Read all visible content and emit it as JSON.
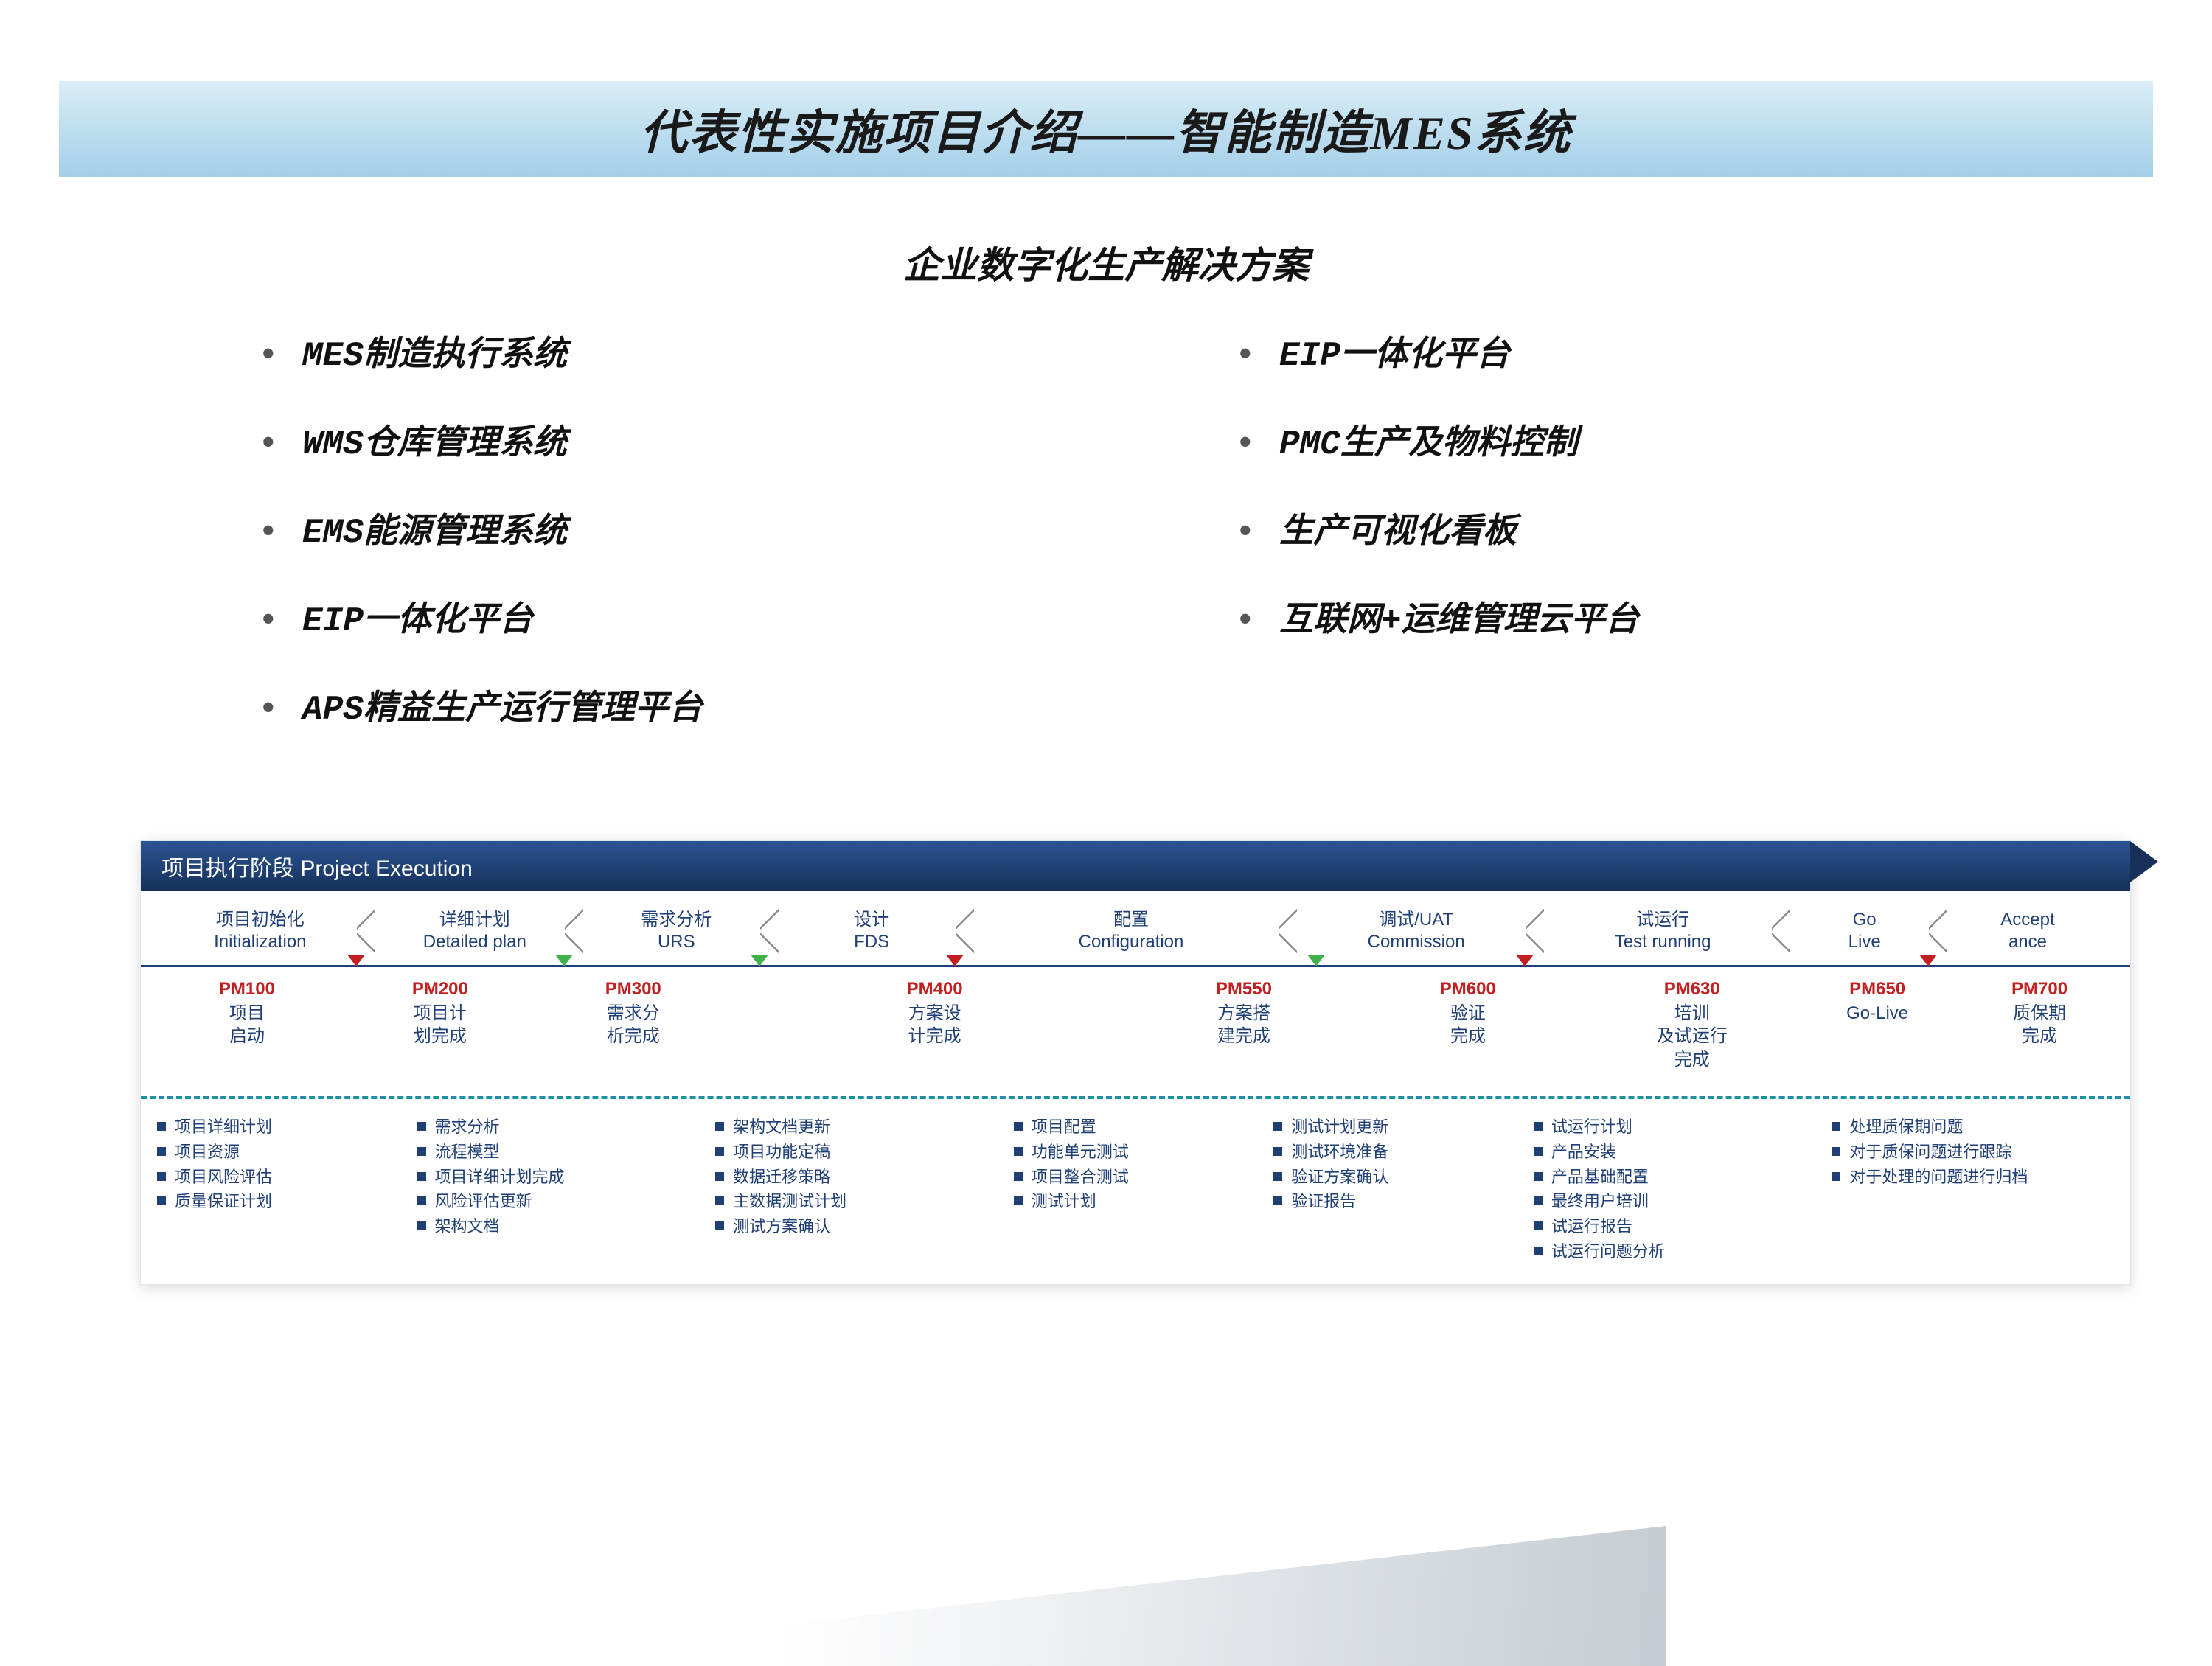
{
  "title": "代表性实施项目介绍——智能制造MES系统",
  "subtitle": "企业数字化生产解决方案",
  "bullets_left": [
    "MES制造执行系统",
    "WMS仓库管理系统",
    "EMS能源管理系统",
    "EIP一体化平台",
    "APS精益生产运行管理平台"
  ],
  "bullets_right": [
    "EIP一体化平台",
    "PMC生产及物料控制",
    "生产可视化看板",
    "互联网+运维管理云平台"
  ],
  "timeline": {
    "header": "项目执行阶段   Project Execution",
    "phases": [
      {
        "label": "项目初始化\nInitialization",
        "flex": 1.4,
        "marker": "red"
      },
      {
        "label": "详细计划\nDetailed plan",
        "flex": 1.3,
        "marker": "green"
      },
      {
        "label": "需求分析\nURS",
        "flex": 1.2,
        "marker": "green"
      },
      {
        "label": "设计\nFDS",
        "flex": 1.2,
        "marker": "red"
      },
      {
        "label": "配置\nConfiguration",
        "flex": 2.2,
        "marker": null
      },
      {
        "label": "调试/UAT\nCommission",
        "flex": 1.6,
        "marker": "green",
        "marker_side": "left",
        "marker2": "red"
      },
      {
        "label": "试运行\nTest running",
        "flex": 1.6,
        "marker": null
      },
      {
        "label": "Go\nLive",
        "flex": 0.9,
        "marker": "red"
      },
      {
        "label": "Accept\nance",
        "flex": 1.0,
        "marker": null
      }
    ],
    "milestones": [
      {
        "pm": "PM100",
        "label": "项目\n启动",
        "flex": 1.2
      },
      {
        "pm": "PM200",
        "label": "项目计\n划完成",
        "flex": 1.2
      },
      {
        "pm": "PM300",
        "label": "需求分\n析完成",
        "flex": 1.2
      },
      {
        "pm": "PM400",
        "label": "方案设\n计完成",
        "flex": 2.6
      },
      {
        "pm": "PM550",
        "label": "方案搭\n建完成",
        "flex": 1.3
      },
      {
        "pm": "PM600",
        "label": "验证\n完成",
        "flex": 1.5
      },
      {
        "pm": "PM630",
        "label": "培训\n及试运行\n完成",
        "flex": 1.3
      },
      {
        "pm": "PM650",
        "label": "Go-Live",
        "flex": 1.0
      },
      {
        "pm": "PM700",
        "label": "质保期\n完成",
        "flex": 1.0
      }
    ],
    "deliverables": [
      {
        "flex": 1.3,
        "items": [
          "项目详细计划",
          "项目资源",
          "项目风险评估",
          "质量保证计划"
        ]
      },
      {
        "flex": 1.5,
        "items": [
          "需求分析",
          "流程模型",
          "项目详细计划完成",
          "风险评估更新",
          "架构文档"
        ]
      },
      {
        "flex": 1.5,
        "items": [
          "架构文档更新",
          "项目功能定稿",
          "数据迁移策略",
          "主数据测试计划",
          "测试方案确认"
        ]
      },
      {
        "flex": 1.3,
        "items": [
          "项目配置",
          "功能单元测试",
          "项目整合测试",
          "测试计划"
        ]
      },
      {
        "flex": 1.3,
        "items": [
          "测试计划更新",
          "测试环境准备",
          "验证方案确认",
          "验证报告"
        ]
      },
      {
        "flex": 1.5,
        "items": [
          "试运行计划",
          "产品安装",
          "产品基础配置",
          "最终用户培训",
          "试运行报告",
          "试运行问题分析"
        ]
      },
      {
        "flex": 1.5,
        "items": [
          "处理质保期问题",
          "对于质保问题进行跟踪",
          "对于处理的问题进行归档"
        ]
      }
    ]
  },
  "colors": {
    "title_gradient_top": "#d9edf7",
    "title_gradient_bottom": "#a4cfe8",
    "navy": "#1f3f75",
    "red": "#c22020",
    "green": "#3fb24a",
    "separator": "#1f8fa0",
    "chevron_grey": "#8b8b8b",
    "page_bg": "#ffffff"
  }
}
